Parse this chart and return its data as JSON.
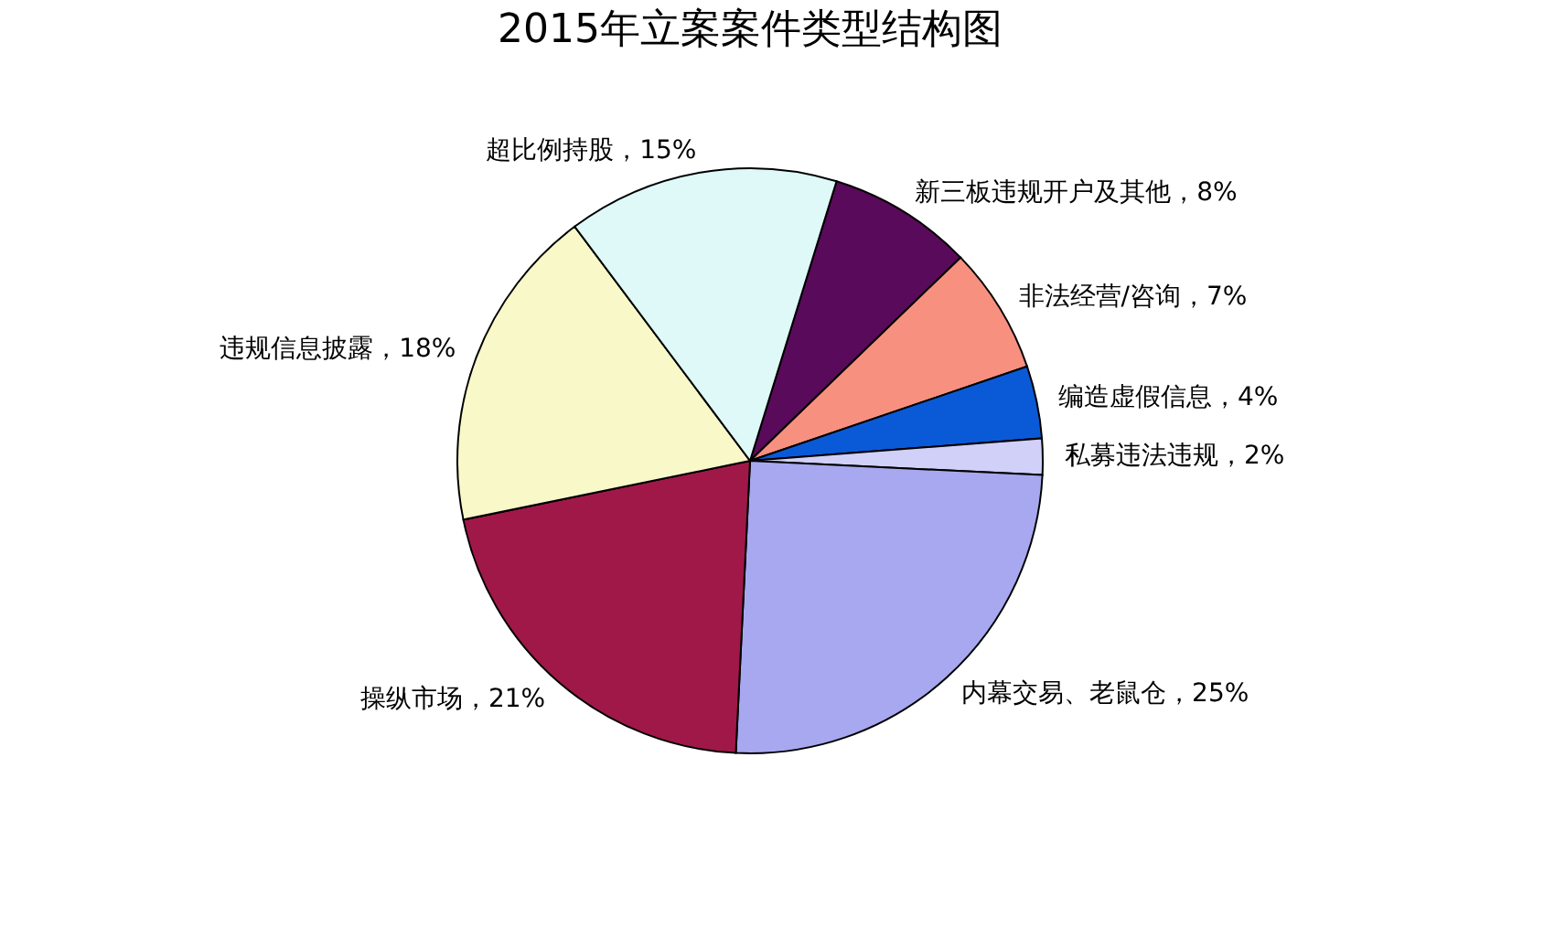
{
  "chart_data": {
    "type": "pie",
    "title": "2015年立案案件类型结构图",
    "categories": [
      "新三板违规开户及其他，8%",
      "非法经营/咨询，7%",
      "编造虚假信息，4%",
      "私募违法违规，2%",
      "内幕交易、老鼠仓，25%",
      "操纵市场，21%",
      "违规信息披露，18%",
      "超比例持股，15%"
    ],
    "values": [
      8,
      7,
      4,
      2,
      25,
      21,
      18,
      15
    ],
    "colors": [
      "#5a0a5a",
      "#f89080",
      "#0a5ad8",
      "#d0d0f8",
      "#a8a8f0",
      "#a01848",
      "#f8f8c8",
      "#dff8f8"
    ],
    "legend": false
  }
}
